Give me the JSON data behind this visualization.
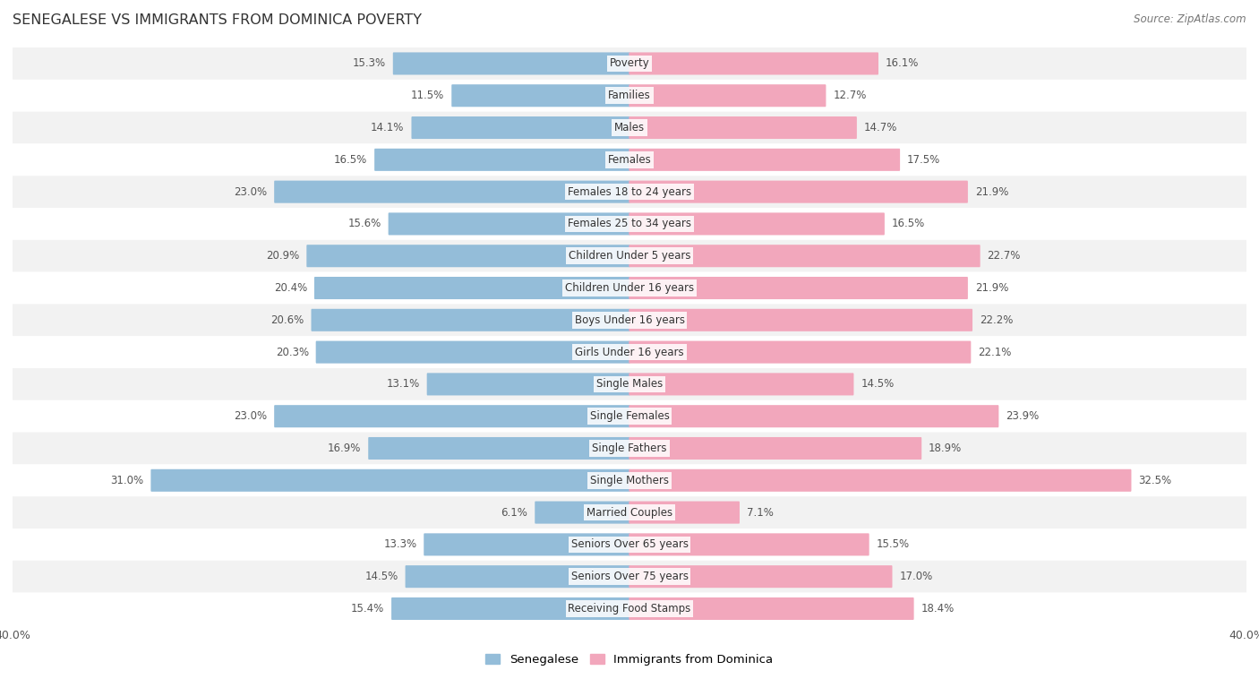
{
  "title": "SENEGALESE VS IMMIGRANTS FROM DOMINICA POVERTY",
  "source": "Source: ZipAtlas.com",
  "categories": [
    "Poverty",
    "Families",
    "Males",
    "Females",
    "Females 18 to 24 years",
    "Females 25 to 34 years",
    "Children Under 5 years",
    "Children Under 16 years",
    "Boys Under 16 years",
    "Girls Under 16 years",
    "Single Males",
    "Single Females",
    "Single Fathers",
    "Single Mothers",
    "Married Couples",
    "Seniors Over 65 years",
    "Seniors Over 75 years",
    "Receiving Food Stamps"
  ],
  "senegalese": [
    15.3,
    11.5,
    14.1,
    16.5,
    23.0,
    15.6,
    20.9,
    20.4,
    20.6,
    20.3,
    13.1,
    23.0,
    16.9,
    31.0,
    6.1,
    13.3,
    14.5,
    15.4
  ],
  "dominica": [
    16.1,
    12.7,
    14.7,
    17.5,
    21.9,
    16.5,
    22.7,
    21.9,
    22.2,
    22.1,
    14.5,
    23.9,
    18.9,
    32.5,
    7.1,
    15.5,
    17.0,
    18.4
  ],
  "senegalese_color": "#94bdd9",
  "dominica_color": "#f2a7bc",
  "senegalese_label": "Senegalese",
  "dominica_label": "Immigrants from Dominica",
  "xlim": 40.0,
  "background_color": "#ffffff",
  "row_bg_even": "#f2f2f2",
  "row_bg_odd": "#ffffff",
  "bar_height": 0.62,
  "title_fontsize": 11.5,
  "label_fontsize": 8.5,
  "value_fontsize": 8.5,
  "source_fontsize": 8.5
}
